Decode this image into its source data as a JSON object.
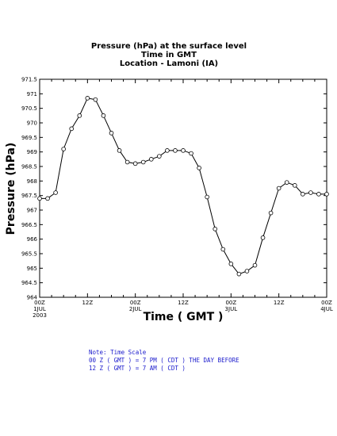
{
  "chart_data": {
    "type": "line",
    "title_lines": [
      "Pressure (hPa) at the surface level",
      "Time in GMT",
      "Location - Lamoni (IA)"
    ],
    "xlabel": "Time ( GMT )",
    "ylabel": "Pressure (hPa)",
    "ylim": [
      964,
      971.5
    ],
    "y_ticks": [
      "971.5",
      "971",
      "970.5",
      "970",
      "969.5",
      "969",
      "968.5",
      "968",
      "967.5",
      "967",
      "966.5",
      "966",
      "965.5",
      "965",
      "964.5",
      "964"
    ],
    "x_range_hours": [
      0,
      72
    ],
    "x_ticks": [
      {
        "hour": 0,
        "label": "00Z",
        "sub1": "1JUL",
        "sub2": "2003"
      },
      {
        "hour": 12,
        "label": "12Z",
        "sub1": "",
        "sub2": ""
      },
      {
        "hour": 24,
        "label": "00Z",
        "sub1": "2JUL",
        "sub2": ""
      },
      {
        "hour": 36,
        "label": "12Z",
        "sub1": "",
        "sub2": ""
      },
      {
        "hour": 48,
        "label": "00Z",
        "sub1": "3JUL",
        "sub2": ""
      },
      {
        "hour": 60,
        "label": "12Z",
        "sub1": "",
        "sub2": ""
      },
      {
        "hour": 72,
        "label": "00Z",
        "sub1": "4JUL",
        "sub2": ""
      }
    ],
    "series": [
      {
        "x": [
          0,
          2,
          4,
          6,
          8,
          10,
          12,
          14,
          16,
          18,
          20,
          22,
          24,
          26,
          28,
          30,
          32,
          34,
          36,
          38,
          40,
          42,
          44,
          46,
          48,
          50,
          52,
          54,
          56,
          58,
          60,
          62,
          64,
          66,
          68,
          70,
          72
        ],
        "values": [
          967.4,
          967.4,
          967.6,
          969.1,
          969.8,
          970.25,
          970.85,
          970.8,
          970.25,
          969.65,
          969.05,
          968.65,
          968.6,
          968.65,
          968.75,
          968.85,
          969.05,
          969.05,
          969.05,
          968.95,
          968.45,
          967.45,
          966.35,
          965.65,
          965.15,
          964.8,
          964.9,
          965.1,
          966.05,
          966.9,
          967.75,
          967.95,
          967.85,
          967.55,
          967.6,
          967.55,
          967.55
        ]
      }
    ],
    "note_lines": [
      "Note: Time Scale",
      "00 Z ( GMT ) = 7 PM ( CDT ) THE DAY BEFORE",
      "12 Z ( GMT ) = 7 AM ( CDT )"
    ],
    "colors": {
      "line": "#000000",
      "marker_fill": "#ffffff",
      "note": "#1a1acc"
    },
    "grid": false
  }
}
